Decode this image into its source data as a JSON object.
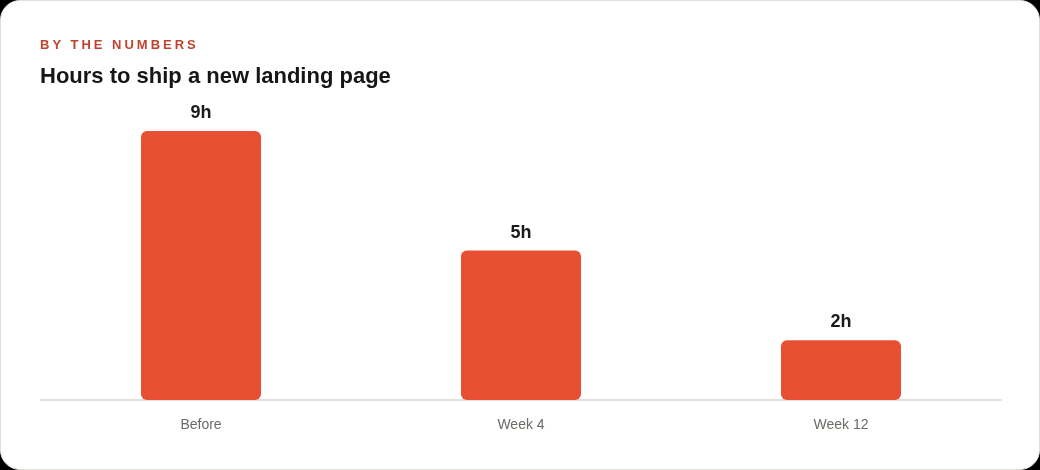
{
  "chart_data": {
    "type": "bar",
    "subtitle": "BY THE NUMBERS",
    "title": "Hours to ship a new landing page",
    "categories": [
      "Before",
      "Week 4",
      "Week 12"
    ],
    "values": [
      9,
      5,
      2
    ],
    "value_labels": [
      "9h",
      "5h",
      "2h"
    ],
    "color": "#e85034",
    "grid": false
  }
}
